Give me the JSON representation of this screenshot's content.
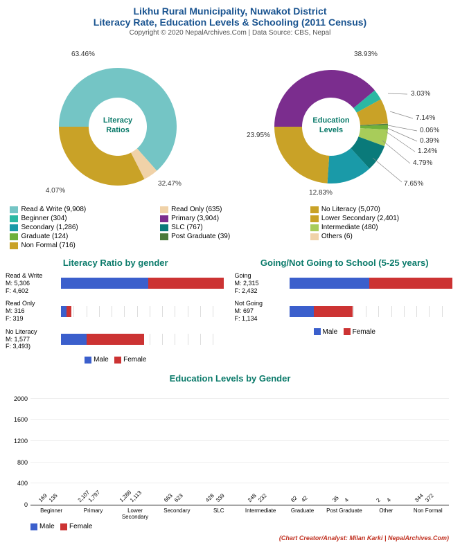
{
  "title": {
    "line1": "Likhu Rural Municipality, Nuwakot District",
    "line2": "Literacy Rate, Education Levels & Schooling (2011 Census)",
    "copyright": "Copyright © 2020 NepalArchives.Com | Data Source: CBS, Nepal"
  },
  "colors": {
    "male": "#3b5fcc",
    "female": "#cc3333",
    "teal": "#0a7a6a",
    "navy": "#1a5490"
  },
  "donut1": {
    "center_label": "Literacy\nRatios",
    "slices": [
      {
        "label": "Read & Write (9,908)",
        "pct": 63.46,
        "pct_str": "63.46%",
        "color": "#74c5c5"
      },
      {
        "label": "Read Only (635)",
        "pct": 4.07,
        "pct_str": "4.07%",
        "color": "#f0d2a8"
      },
      {
        "label": "No Literacy (5,070)",
        "pct": 32.47,
        "pct_str": "32.47%",
        "color": "#c9a227"
      }
    ]
  },
  "donut2": {
    "center_label": "Education\nLevels",
    "slices": [
      {
        "label": "Primary (3,904)",
        "pct": 38.93,
        "pct_str": "38.93%",
        "color": "#7b2d8e"
      },
      {
        "label": "Beginner (304)",
        "pct": 3.03,
        "pct_str": "3.03%",
        "color": "#2bb8a3"
      },
      {
        "label": "Non Formal (716)",
        "pct": 7.14,
        "pct_str": "7.14%",
        "color": "#c9a227"
      },
      {
        "label": "Others (6)",
        "pct": 0.06,
        "pct_str": "0.06%",
        "color": "#f0d2a8"
      },
      {
        "label": "Post Graduate (39)",
        "pct": 0.39,
        "pct_str": "0.39%",
        "color": "#4a7a3a"
      },
      {
        "label": "Graduate (124)",
        "pct": 1.24,
        "pct_str": "1.24%",
        "color": "#6fb03a"
      },
      {
        "label": "Intermediate (480)",
        "pct": 4.79,
        "pct_str": "4.79%",
        "color": "#a8cc5a"
      },
      {
        "label": "SLC (767)",
        "pct": 7.65,
        "pct_str": "7.65%",
        "color": "#0a7a7a"
      },
      {
        "label": "Secondary (1,286)",
        "pct": 12.83,
        "pct_str": "12.83%",
        "color": "#1a9aa8"
      },
      {
        "label": "Lower Secondary (2,401)",
        "pct": 23.95,
        "pct_str": "23.95%",
        "color": "#c9a227"
      }
    ],
    "legend_order": [
      "Primary (3,904)",
      "Lower Secondary (2,401)",
      "Secondary (1,286)",
      "Beginner (304)",
      "SLC (767)",
      "Post Graduate (39)",
      "Intermediate (480)",
      "Graduate (124)",
      "Others (6)",
      "Non Formal (716)"
    ]
  },
  "hbar1": {
    "title": "Literacy Ratio by gender",
    "max": 10000,
    "rows": [
      {
        "label": "Read & Write",
        "m": 5306,
        "f": 4602,
        "m_str": "M: 5,306",
        "f_str": "F: 4,602"
      },
      {
        "label": "Read Only",
        "m": 316,
        "f": 319,
        "m_str": "M: 316",
        "f_str": "F: 319"
      },
      {
        "label": "No Literacy",
        "m": 1577,
        "f": 3493,
        "m_str": "M: 1,577",
        "f_str": "F: 3,493)"
      }
    ]
  },
  "hbar2": {
    "title": "Going/Not Going to School (5-25 years)",
    "max": 4800,
    "rows": [
      {
        "label": "Going",
        "m": 2315,
        "f": 2432,
        "m_str": "M: 2,315",
        "f_str": "F: 2,432"
      },
      {
        "label": "Not Going",
        "m": 697,
        "f": 1134,
        "m_str": "M: 697",
        "f_str": "F: 1,134"
      }
    ]
  },
  "mf_legend": {
    "male": "Male",
    "female": "Female"
  },
  "vbar": {
    "title": "Education Levels by Gender",
    "ymax": 2200,
    "yticks": [
      0,
      400,
      800,
      1200,
      1600,
      2000
    ],
    "categories": [
      {
        "name": "Beginner",
        "m": 169,
        "f": 135
      },
      {
        "name": "Primary",
        "m": 2107,
        "f": 1797
      },
      {
        "name": "Lower Secondary",
        "m": 1288,
        "f": 1113
      },
      {
        "name": "Secondary",
        "m": 663,
        "f": 623
      },
      {
        "name": "SLC",
        "m": 428,
        "f": 339
      },
      {
        "name": "Intermediate",
        "m": 248,
        "f": 232
      },
      {
        "name": "Graduate",
        "m": 82,
        "f": 42
      },
      {
        "name": "Post Graduate",
        "m": 35,
        "f": 4
      },
      {
        "name": "Other",
        "m": 2,
        "f": 4
      },
      {
        "name": "Non Formal",
        "m": 344,
        "f": 372
      }
    ]
  },
  "credit": "(Chart Creator/Analyst: Milan Karki | NepalArchives.Com)"
}
